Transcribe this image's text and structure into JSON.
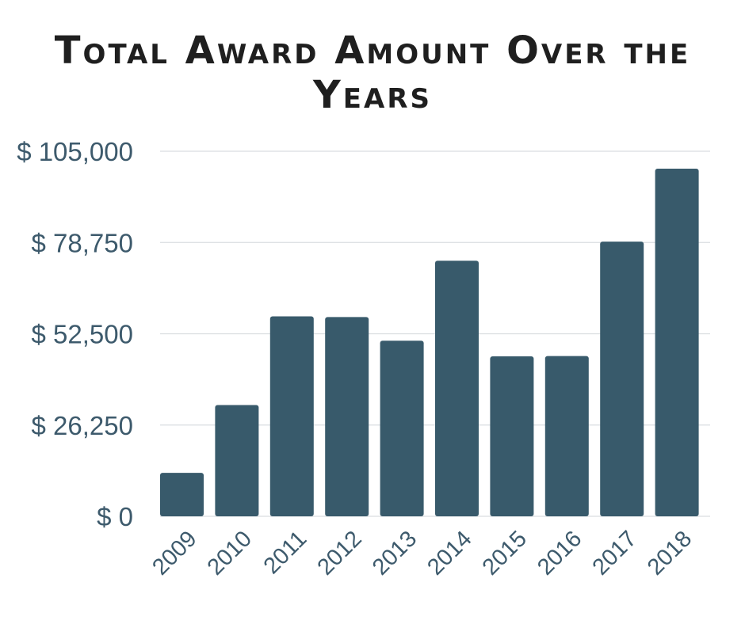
{
  "chart_data": {
    "type": "bar",
    "title": "Total Award Amount Over the Years",
    "xlabel": "",
    "ylabel": "",
    "categories": [
      "2009",
      "2010",
      "2011",
      "2012",
      "2013",
      "2014",
      "2015",
      "2016",
      "2017",
      "2018"
    ],
    "values": [
      12500,
      32000,
      57500,
      57300,
      50500,
      73500,
      46000,
      46100,
      79000,
      100000
    ],
    "ylim": [
      0,
      105000
    ],
    "yticks": [
      0,
      26250,
      52500,
      78750,
      105000
    ],
    "ytick_labels": [
      "$ 0",
      "$ 26,250",
      "$ 52,500",
      "$ 78,750",
      "$ 105,000"
    ],
    "grid": true,
    "legend": "none",
    "bar_color": "#385a6b",
    "tick_color": "#3d5a6c",
    "grid_color": "#d9dde0"
  }
}
